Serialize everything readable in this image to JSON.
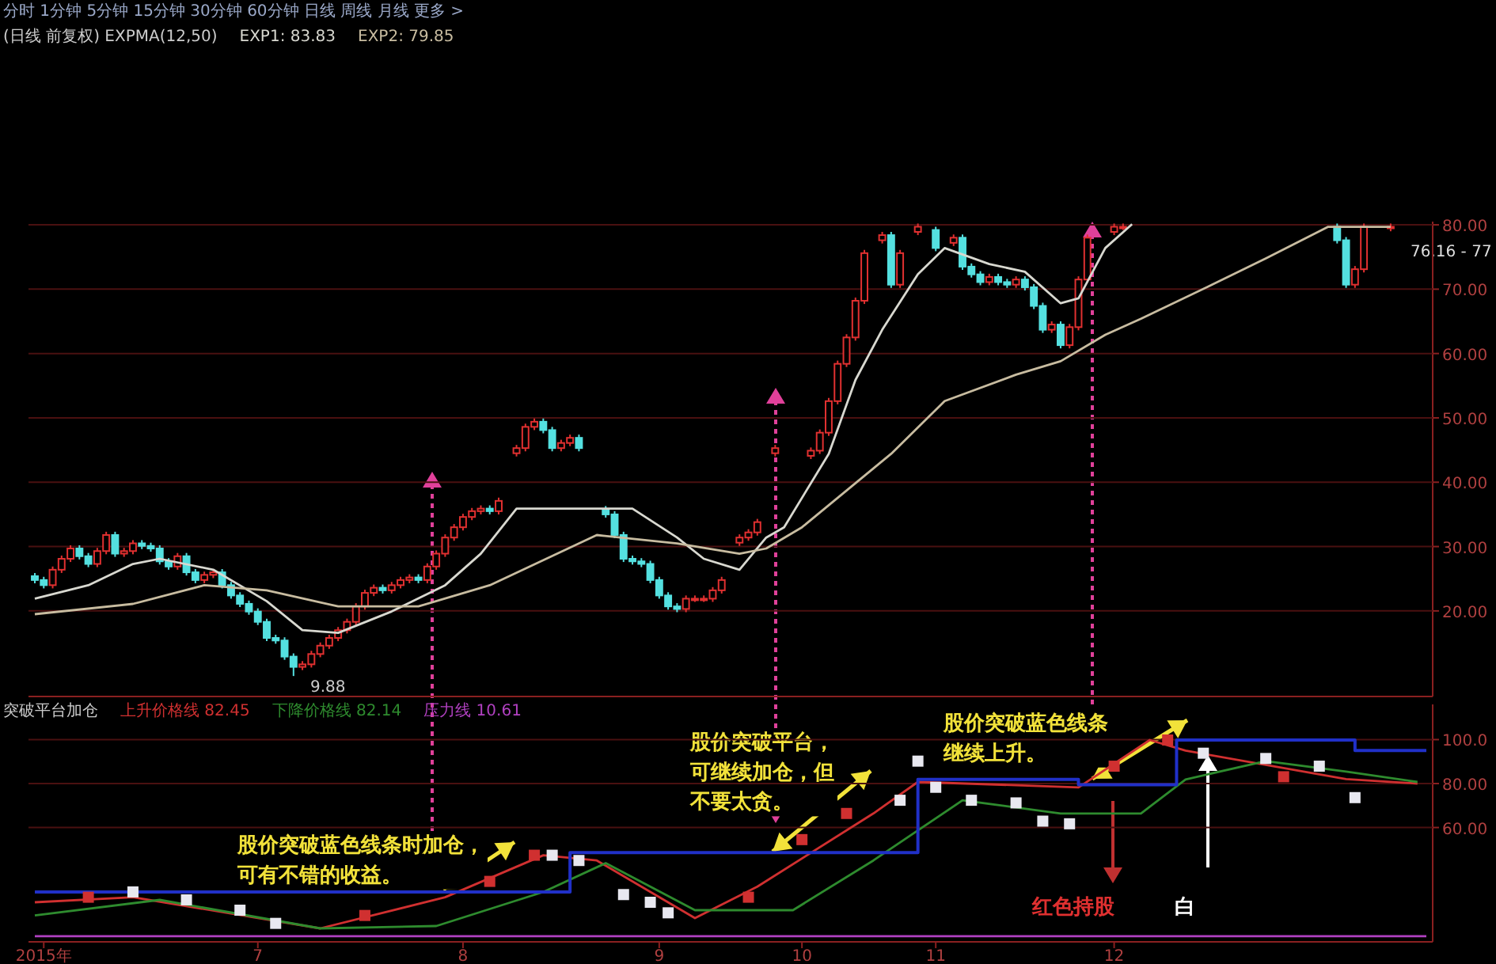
{
  "chart_data": [
    {
      "type": "candlestick",
      "title": "(日线 前复权)  EXPMA(12,50)",
      "tick_labels": "y",
      "grid": "y",
      "legend": "top left",
      "categories": [
        null,
        null,
        null,
        null,
        null,
        null,
        null,
        null,
        null,
        null,
        null,
        null,
        null,
        null,
        null,
        null,
        null,
        null,
        null,
        null,
        null,
        null,
        null,
        null,
        null,
        null,
        null,
        null,
        null,
        null,
        null,
        null,
        null,
        null,
        null,
        null,
        null,
        null,
        null,
        null,
        null,
        null,
        null,
        null,
        null,
        null,
        null,
        null,
        null,
        null,
        null,
        null,
        null,
        null,
        null,
        null,
        null,
        null,
        null,
        null,
        null,
        null,
        null,
        null,
        null,
        null,
        null,
        null,
        null,
        null,
        null,
        null,
        null,
        null,
        null,
        null,
        null,
        null,
        null,
        null,
        null,
        null,
        null,
        null,
        null,
        null,
        null,
        null,
        null,
        null,
        null,
        null,
        null,
        null,
        null,
        null,
        null,
        null,
        null,
        null,
        null,
        null,
        null,
        null,
        null,
        null,
        null,
        null,
        null,
        null,
        null,
        null,
        null,
        null,
        null,
        null,
        null,
        null,
        null,
        null,
        null,
        null,
        null,
        null,
        null,
        null,
        null,
        null,
        null,
        null,
        null,
        null,
        null,
        null,
        null,
        null,
        null,
        null,
        null,
        null,
        null,
        null,
        null,
        null,
        null,
        null,
        null,
        null,
        null,
        null,
        null,
        null,
        null,
        null,
        null,
        null,
        null
      ],
      "ohlc": [
        [
          25.4,
          25.9,
          24.3,
          24.8
        ],
        [
          24.8,
          25.3,
          23.5,
          24.0
        ],
        [
          24.0,
          26.9,
          23.5,
          26.4
        ],
        [
          26.4,
          28.6,
          25.9,
          28.1
        ],
        [
          28.1,
          30.2,
          27.6,
          29.7
        ],
        [
          29.7,
          30.2,
          28.0,
          28.5
        ],
        [
          28.5,
          29.0,
          26.8,
          27.3
        ],
        [
          27.3,
          29.8,
          26.8,
          29.3
        ],
        [
          29.3,
          32.3,
          28.8,
          31.8
        ],
        [
          31.8,
          32.3,
          28.4,
          28.9
        ],
        [
          28.9,
          29.8,
          28.4,
          29.3
        ],
        [
          29.3,
          31.0,
          28.8,
          30.5
        ],
        [
          30.5,
          31.0,
          29.6,
          30.1
        ],
        [
          30.1,
          30.6,
          29.2,
          29.7
        ],
        [
          29.7,
          30.2,
          27.2,
          27.7
        ],
        [
          27.7,
          28.2,
          26.4,
          26.9
        ],
        [
          26.9,
          29.0,
          26.4,
          28.5
        ],
        [
          28.5,
          29.0,
          25.5,
          26.0
        ],
        [
          26.0,
          26.5,
          24.3,
          24.8
        ],
        [
          24.8,
          26.1,
          24.3,
          25.6
        ],
        [
          25.6,
          26.5,
          25.1,
          26.0
        ],
        [
          26.0,
          26.5,
          23.5,
          24.0
        ],
        [
          24.0,
          24.5,
          21.9,
          22.4
        ],
        [
          22.4,
          22.9,
          20.6,
          21.1
        ],
        [
          21.1,
          21.6,
          19.4,
          19.9
        ],
        [
          19.9,
          20.4,
          17.8,
          18.3
        ],
        [
          18.3,
          18.8,
          15.3,
          15.8
        ],
        [
          15.8,
          16.3,
          14.9,
          15.4
        ],
        [
          15.4,
          15.9,
          12.4,
          12.9
        ],
        [
          12.9,
          13.4,
          9.88,
          11.3
        ],
        [
          11.3,
          12.2,
          10.8,
          11.7
        ],
        [
          11.7,
          13.8,
          11.2,
          13.3
        ],
        [
          13.3,
          15.1,
          12.8,
          14.6
        ],
        [
          14.6,
          16.3,
          14.1,
          15.8
        ],
        [
          15.8,
          17.5,
          15.3,
          17.0
        ],
        [
          17.0,
          18.8,
          16.5,
          18.3
        ],
        [
          18.3,
          21.2,
          17.8,
          20.7
        ],
        [
          20.7,
          23.3,
          20.2,
          22.8
        ],
        [
          22.8,
          24.1,
          22.3,
          23.6
        ],
        [
          23.6,
          24.1,
          22.7,
          23.2
        ],
        [
          23.2,
          24.5,
          22.7,
          24.0
        ],
        [
          24.0,
          25.3,
          23.5,
          24.8
        ],
        [
          24.8,
          25.7,
          24.3,
          25.2
        ],
        [
          25.2,
          25.7,
          24.3,
          24.8
        ],
        [
          24.8,
          27.4,
          24.3,
          26.9
        ],
        [
          26.9,
          29.4,
          26.4,
          28.9
        ],
        [
          28.9,
          31.9,
          28.4,
          31.4
        ],
        [
          31.4,
          33.5,
          30.9,
          33.0
        ],
        [
          33.0,
          35.1,
          32.5,
          34.6
        ],
        [
          34.6,
          36.0,
          34.1,
          35.5
        ],
        [
          35.5,
          36.4,
          35.0,
          35.9
        ],
        [
          35.9,
          36.4,
          35.0,
          35.5
        ],
        [
          35.5,
          37.6,
          35.0,
          37.1
        ],
        null,
        [
          44.5,
          45.8,
          44.0,
          45.3
        ],
        [
          45.3,
          49.1,
          44.8,
          48.6
        ],
        [
          48.6,
          49.9,
          48.1,
          49.4
        ],
        [
          49.4,
          49.9,
          47.6,
          48.1
        ],
        [
          48.1,
          48.6,
          44.8,
          45.3
        ],
        [
          45.3,
          46.6,
          44.8,
          46.1
        ],
        [
          46.1,
          47.4,
          45.6,
          46.9
        ],
        [
          46.9,
          47.4,
          44.8,
          45.3
        ],
        null,
        null,
        [
          35.8,
          36.3,
          34.5,
          35.0
        ],
        [
          35.0,
          35.5,
          31.3,
          31.8
        ],
        [
          31.8,
          32.3,
          27.6,
          28.1
        ],
        [
          28.1,
          28.6,
          27.2,
          27.7
        ],
        [
          27.7,
          28.2,
          26.8,
          27.3
        ],
        [
          27.3,
          27.8,
          24.3,
          24.8
        ],
        [
          24.8,
          25.3,
          21.9,
          22.4
        ],
        [
          22.4,
          22.9,
          20.2,
          20.7
        ],
        [
          20.7,
          21.2,
          19.8,
          20.3
        ],
        [
          20.3,
          22.4,
          19.8,
          21.9
        ],
        [
          21.9,
          22.4,
          21.4,
          21.9
        ],
        [
          21.9,
          22.4,
          21.4,
          21.9
        ],
        [
          21.9,
          23.7,
          21.4,
          23.2
        ],
        [
          23.2,
          25.3,
          22.7,
          24.8
        ],
        null,
        [
          30.6,
          31.9,
          30.1,
          31.4
        ],
        [
          31.4,
          32.7,
          30.9,
          32.2
        ],
        [
          32.2,
          34.3,
          31.7,
          33.8
        ],
        null,
        [
          44.5,
          45.8,
          44.0,
          45.3
        ],
        null,
        null,
        null,
        [
          44.1,
          45.4,
          43.6,
          44.9
        ],
        [
          44.9,
          48.2,
          44.4,
          47.7
        ],
        [
          47.7,
          53.1,
          47.2,
          52.6
        ],
        [
          52.6,
          58.9,
          52.1,
          58.4
        ],
        [
          58.4,
          63.0,
          57.9,
          62.5
        ],
        [
          62.5,
          68.7,
          62.0,
          68.2
        ],
        [
          68.2,
          76.1,
          67.7,
          75.6
        ],
        null,
        [
          77.6,
          78.9,
          77.1,
          78.4
        ],
        [
          78.4,
          78.9,
          70.2,
          70.7
        ],
        [
          70.7,
          76.1,
          70.2,
          75.6
        ],
        null,
        [
          78.9,
          80.2,
          78.4,
          79.7
        ],
        null,
        [
          79.2,
          79.7,
          75.9,
          76.4
        ],
        null,
        [
          77.2,
          78.5,
          76.7,
          78.0
        ],
        [
          78.0,
          78.5,
          73.0,
          73.5
        ],
        [
          73.5,
          74.0,
          71.8,
          72.3
        ],
        [
          72.3,
          72.8,
          70.6,
          71.1
        ],
        [
          71.1,
          72.4,
          70.6,
          71.9
        ],
        [
          71.9,
          72.4,
          70.6,
          71.1
        ],
        [
          71.1,
          71.6,
          70.2,
          70.7
        ],
        [
          70.7,
          72.0,
          70.2,
          71.5
        ],
        [
          71.5,
          72.0,
          69.8,
          70.3
        ],
        [
          70.3,
          70.8,
          66.9,
          67.4
        ],
        [
          67.4,
          67.9,
          63.2,
          63.7
        ],
        [
          63.7,
          65.0,
          63.2,
          64.5
        ],
        [
          64.5,
          65.0,
          60.8,
          61.3
        ],
        [
          61.3,
          64.6,
          60.8,
          64.1
        ],
        [
          64.1,
          72.0,
          63.6,
          71.5
        ],
        [
          71.5,
          78.5,
          71.0,
          78.0
        ],
        null,
        null,
        [
          78.9,
          80.2,
          78.4,
          79.7
        ],
        [
          79.7,
          80.2,
          79.2,
          79.7
        ],
        null,
        null,
        null,
        null,
        null,
        null,
        null,
        null,
        null,
        null,
        null,
        null,
        null,
        null,
        null,
        null,
        null,
        null,
        null,
        null,
        null,
        null,
        null,
        [
          79.7,
          80.2,
          77.1,
          77.6
        ],
        [
          77.6,
          78.1,
          70.2,
          70.7
        ],
        [
          70.7,
          73.6,
          70.2,
          73.1
        ],
        [
          73.1,
          80.2,
          72.6,
          79.7
        ],
        null,
        null,
        [
          79.5,
          80.2,
          79.0,
          79.7
        ],
        null,
        null,
        null,
        null
      ],
      "series": [
        {
          "name": "EXP1: 83.83",
          "type": "line",
          "color": "#d8d8d0",
          "values": [
            21.9,
            null,
            null,
            null,
            null,
            null,
            24.0,
            null,
            null,
            null,
            null,
            27.3,
            null,
            null,
            28.1,
            null,
            null,
            null,
            null,
            null,
            26.4,
            null,
            null,
            null,
            null,
            null,
            21.5,
            null,
            null,
            null,
            17.0,
            null,
            null,
            null,
            16.6,
            null,
            null,
            null,
            null,
            null,
            19.9,
            null,
            null,
            null,
            null,
            null,
            24.0,
            null,
            null,
            null,
            28.9,
            null,
            null,
            null,
            35.9,
            null,
            null,
            null,
            null,
            null,
            null,
            null,
            null,
            null,
            null,
            null,
            null,
            35.9,
            null,
            null,
            null,
            null,
            31.4,
            null,
            null,
            28.1,
            null,
            null,
            null,
            26.4,
            null,
            null,
            31.4,
            null,
            33.0,
            null,
            null,
            null,
            null,
            44.4,
            null,
            null,
            55.9,
            null,
            null,
            63.7,
            null,
            null,
            null,
            72.3,
            null,
            null,
            76.4,
            null,
            null,
            null,
            null,
            73.9,
            null,
            null,
            null,
            72.7,
            null,
            null,
            null,
            67.8,
            null,
            68.6,
            null,
            null,
            76.4,
            null,
            null,
            80.1,
            null,
            null,
            null,
            null,
            null,
            null,
            null,
            null,
            null,
            null,
            null,
            null,
            null,
            null,
            null,
            null,
            null,
            null,
            null,
            null,
            null,
            null,
            null,
            null,
            null,
            null,
            null,
            null,
            null,
            null,
            null,
            null,
            null
          ]
        },
        {
          "name": "EXP2: 79.85",
          "type": "line",
          "color": "#c8bca0",
          "values": [
            19.5,
            null,
            null,
            null,
            null,
            null,
            null,
            null,
            null,
            null,
            null,
            21.1,
            null,
            null,
            null,
            null,
            null,
            null,
            null,
            24.0,
            null,
            null,
            null,
            null,
            null,
            null,
            23.2,
            null,
            null,
            null,
            null,
            null,
            null,
            null,
            20.7,
            null,
            null,
            null,
            null,
            null,
            null,
            null,
            null,
            20.7,
            null,
            null,
            null,
            null,
            null,
            null,
            null,
            24.0,
            null,
            null,
            null,
            null,
            null,
            null,
            null,
            null,
            null,
            null,
            null,
            31.8,
            null,
            null,
            null,
            null,
            null,
            null,
            null,
            null,
            30.5,
            null,
            null,
            null,
            null,
            null,
            null,
            28.9,
            null,
            null,
            29.7,
            null,
            null,
            null,
            33.0,
            null,
            null,
            null,
            null,
            null,
            null,
            null,
            null,
            null,
            44.4,
            null,
            null,
            null,
            null,
            null,
            52.6,
            null,
            null,
            null,
            null,
            null,
            null,
            null,
            56.7,
            null,
            null,
            null,
            null,
            58.8,
            null,
            null,
            null,
            null,
            62.9,
            null,
            null,
            null,
            65.4,
            null,
            null,
            null,
            null,
            null,
            null,
            null,
            70.7,
            null,
            null,
            null,
            null,
            null,
            74.8,
            null,
            null,
            null,
            null,
            null,
            null,
            79.7,
            null,
            null,
            null,
            null,
            null,
            null,
            79.7,
            null,
            null,
            null,
            null
          ]
        }
      ],
      "ylim": [
        6.7,
        80.5
      ],
      "yticks": [
        {
          "value": 20,
          "label": "20.00"
        },
        {
          "value": 30,
          "label": "30.00"
        },
        {
          "value": 40,
          "label": "40.00"
        },
        {
          "value": 50,
          "label": "50.00"
        },
        {
          "value": 60,
          "label": "60.00"
        },
        {
          "value": 70,
          "label": "70.00"
        },
        {
          "value": 80,
          "label": "80.00"
        }
      ],
      "annotations": [
        "分时 1分钟 5分钟 15分钟 30分钟 60分钟 日线 周线 月线 更多 >",
        "9.88",
        "76.16 - 77"
      ]
    },
    {
      "type": "line",
      "title": "突破平台加仓",
      "grid": "y",
      "legend": "top left",
      "categories": [
        null,
        "2015年",
        null,
        null,
        null,
        null,
        null,
        null,
        null,
        null,
        null,
        null,
        null,
        null,
        null,
        null,
        null,
        null,
        null,
        null,
        null,
        null,
        null,
        null,
        null,
        "7",
        null,
        null,
        null,
        null,
        null,
        null,
        null,
        null,
        null,
        null,
        null,
        null,
        null,
        null,
        null,
        null,
        null,
        null,
        null,
        null,
        null,
        null,
        "8",
        null,
        null,
        null,
        null,
        null,
        null,
        null,
        null,
        null,
        null,
        null,
        null,
        null,
        null,
        null,
        null,
        null,
        null,
        null,
        null,
        null,
        "9",
        null,
        null,
        null,
        null,
        null,
        null,
        null,
        null,
        null,
        null,
        null,
        null,
        null,
        null,
        null,
        "10",
        null,
        null,
        null,
        null,
        null,
        null,
        null,
        null,
        null,
        null,
        null,
        null,
        null,
        null,
        "11",
        null,
        null,
        null,
        null,
        null,
        null,
        null,
        null,
        null,
        null,
        null,
        null,
        null,
        null,
        null,
        null,
        null,
        null,
        null,
        "12",
        null,
        null,
        null,
        null,
        null,
        null,
        null,
        null,
        null,
        null,
        null,
        null,
        null,
        null,
        null,
        null,
        null,
        null,
        null,
        null,
        null,
        null,
        null,
        null,
        null,
        null,
        null,
        null,
        null,
        null,
        null,
        null,
        null,
        null,
        null
      ],
      "series": [
        {
          "name": "上升价格线 82.45",
          "type": "line",
          "color": "#d03030",
          "values": [
            26.0,
            null,
            null,
            null,
            null,
            null,
            null,
            null,
            null,
            null,
            null,
            28.3,
            null,
            null,
            null,
            null,
            null,
            null,
            null,
            null,
            null,
            null,
            null,
            null,
            null,
            null,
            null,
            null,
            null,
            null,
            null,
            null,
            14.1,
            null,
            null,
            null,
            null,
            null,
            null,
            null,
            null,
            null,
            null,
            null,
            null,
            null,
            28.3,
            null,
            null,
            null,
            null,
            null,
            null,
            null,
            null,
            null,
            null,
            47.4,
            null,
            null,
            null,
            null,
            null,
            45.0,
            null,
            null,
            null,
            null,
            null,
            null,
            null,
            null,
            null,
            null,
            18.8,
            null,
            null,
            null,
            null,
            null,
            null,
            33.1,
            null,
            null,
            null,
            null,
            null,
            null,
            null,
            null,
            null,
            null,
            null,
            null,
            66.4,
            null,
            null,
            null,
            null,
            80.7,
            null,
            null,
            null,
            null,
            null,
            null,
            null,
            null,
            null,
            null,
            null,
            null,
            null,
            null,
            null,
            null,
            null,
            78.3,
            null,
            null,
            null,
            null,
            null,
            null,
            null,
            99.8,
            null,
            null,
            null,
            95.0,
            null,
            null,
            null,
            null,
            null,
            null,
            null,
            null,
            null,
            null,
            null,
            null,
            null,
            null,
            null,
            null,
            null,
            82.0,
            null,
            null,
            null,
            null,
            null,
            null,
            null,
            80.0,
            null
          ]
        },
        {
          "name": "下降价格线 82.14",
          "type": "line",
          "color": "#2e8b2e",
          "values": [
            20.0,
            null,
            null,
            null,
            null,
            null,
            null,
            null,
            null,
            null,
            null,
            null,
            null,
            null,
            27.1,
            null,
            null,
            null,
            null,
            null,
            null,
            null,
            null,
            null,
            null,
            null,
            null,
            null,
            null,
            null,
            null,
            null,
            14.1,
            null,
            null,
            null,
            null,
            null,
            null,
            null,
            null,
            null,
            null,
            null,
            null,
            15.2,
            null,
            null,
            null,
            null,
            null,
            null,
            null,
            null,
            null,
            null,
            null,
            30.7,
            null,
            null,
            null,
            null,
            null,
            null,
            43.8,
            null,
            null,
            null,
            null,
            null,
            null,
            null,
            null,
            null,
            22.4,
            null,
            null,
            null,
            null,
            null,
            null,
            null,
            22.4,
            null,
            null,
            22.4,
            null,
            null,
            null,
            null,
            null,
            null,
            null,
            null,
            45.0,
            null,
            null,
            null,
            null,
            null,
            null,
            null,
            null,
            null,
            72.4,
            null,
            null,
            null,
            null,
            null,
            null,
            null,
            null,
            null,
            null,
            66.4,
            null,
            null,
            null,
            null,
            null,
            null,
            null,
            null,
            66.4,
            null,
            null,
            null,
            null,
            81.9,
            null,
            null,
            null,
            null,
            null,
            null,
            null,
            null,
            90.2,
            null,
            null,
            null,
            null,
            null,
            null,
            null,
            null,
            85.5,
            null,
            null,
            null,
            null,
            null,
            null,
            null,
            80.7,
            null
          ]
        },
        {
          "name": "压力线 10.61",
          "type": "line",
          "color": "#b040c0",
          "values": [
            10.6,
            null,
            null,
            null,
            null,
            null,
            null,
            null,
            null,
            null,
            null,
            null,
            null,
            null,
            null,
            null,
            null,
            null,
            null,
            null,
            null,
            null,
            null,
            null,
            null,
            null,
            null,
            null,
            null,
            null,
            null,
            null,
            null,
            null,
            null,
            null,
            null,
            null,
            null,
            null,
            null,
            null,
            null,
            null,
            null,
            null,
            null,
            null,
            null,
            null,
            null,
            null,
            null,
            null,
            null,
            null,
            null,
            null,
            null,
            null,
            null,
            null,
            null,
            null,
            null,
            null,
            null,
            null,
            null,
            null,
            null,
            null,
            null,
            null,
            null,
            null,
            null,
            null,
            null,
            null,
            null,
            null,
            null,
            null,
            null,
            null,
            null,
            null,
            null,
            null,
            null,
            null,
            null,
            null,
            null,
            null,
            null,
            null,
            null,
            null,
            null,
            null,
            null,
            null,
            null,
            null,
            null,
            null,
            null,
            null,
            null,
            null,
            null,
            null,
            null,
            null,
            null,
            null,
            null,
            null,
            null,
            null,
            null,
            null,
            null,
            null,
            null,
            null,
            null,
            null,
            null,
            null,
            null,
            null,
            null,
            null,
            null,
            null,
            null,
            null,
            null,
            null,
            null,
            null,
            null,
            null,
            null,
            null,
            null,
            null,
            null,
            null,
            null,
            null,
            null,
            null,
            10.6
          ]
        },
        {
          "type": "step",
          "color": "#2030c8",
          "values": [
            30.7,
            null,
            null,
            null,
            null,
            null,
            null,
            null,
            null,
            null,
            null,
            null,
            null,
            null,
            null,
            null,
            null,
            null,
            null,
            null,
            null,
            null,
            null,
            null,
            null,
            null,
            null,
            null,
            null,
            null,
            null,
            null,
            null,
            null,
            null,
            null,
            null,
            null,
            null,
            null,
            null,
            null,
            null,
            null,
            null,
            null,
            null,
            null,
            null,
            null,
            null,
            null,
            null,
            null,
            null,
            null,
            null,
            null,
            null,
            null,
            48.6,
            null,
            null,
            null,
            null,
            null,
            null,
            null,
            null,
            null,
            null,
            null,
            null,
            null,
            null,
            null,
            null,
            null,
            null,
            null,
            null,
            null,
            null,
            null,
            null,
            null,
            null,
            null,
            null,
            null,
            null,
            null,
            null,
            null,
            null,
            null,
            null,
            null,
            null,
            81.9,
            null,
            null,
            null,
            null,
            null,
            null,
            null,
            null,
            null,
            null,
            null,
            null,
            null,
            null,
            null,
            null,
            null,
            79.5,
            null,
            null,
            null,
            null,
            null,
            null,
            null,
            null,
            null,
            null,
            99.8,
            null,
            null,
            null,
            null,
            null,
            null,
            null,
            null,
            null,
            null,
            null,
            null,
            null,
            null,
            null,
            null,
            null,
            null,
            null,
            95.0,
            null,
            null,
            null,
            null,
            null,
            null,
            null,
            95.0
          ]
        },
        {
          "type": "scatter",
          "marker": "square",
          "color": "#e8e8f0",
          "values": [
            null,
            null,
            null,
            null,
            null,
            null,
            null,
            null,
            null,
            null,
            null,
            30.7,
            null,
            null,
            null,
            null,
            null,
            27.1,
            null,
            null,
            null,
            null,
            null,
            22.4,
            null,
            null,
            null,
            16.4,
            null,
            null,
            null,
            null,
            null,
            null,
            null,
            null,
            null,
            null,
            null,
            null,
            null,
            null,
            null,
            null,
            null,
            null,
            null,
            null,
            null,
            null,
            null,
            null,
            null,
            null,
            null,
            null,
            null,
            null,
            47.4,
            null,
            null,
            45.0,
            null,
            null,
            null,
            null,
            29.5,
            null,
            null,
            26.0,
            null,
            21.2,
            null,
            null,
            null,
            null,
            null,
            null,
            null,
            null,
            null,
            null,
            null,
            null,
            null,
            null,
            null,
            null,
            null,
            null,
            null,
            null,
            null,
            null,
            null,
            null,
            null,
            72.4,
            null,
            90.2,
            null,
            78.3,
            null,
            null,
            null,
            72.4,
            null,
            null,
            null,
            null,
            71.2,
            null,
            null,
            62.9,
            null,
            null,
            61.7,
            null,
            null,
            null,
            null,
            null,
            null,
            null,
            null,
            null,
            null,
            null,
            null,
            null,
            null,
            93.8,
            null,
            null,
            null,
            null,
            null,
            null,
            91.4,
            null,
            null,
            null,
            null,
            null,
            87.9,
            null,
            null,
            null,
            73.6,
            null,
            null,
            null,
            null,
            null,
            null,
            null,
            null
          ]
        },
        {
          "type": "scatter",
          "marker": "square",
          "color": "#d03030",
          "values": [
            null,
            null,
            null,
            null,
            null,
            null,
            28.3,
            null,
            null,
            null,
            null,
            null,
            null,
            null,
            null,
            null,
            null,
            null,
            null,
            null,
            null,
            null,
            null,
            null,
            null,
            null,
            null,
            null,
            null,
            null,
            null,
            null,
            null,
            null,
            null,
            null,
            null,
            20.0,
            null,
            null,
            null,
            null,
            null,
            null,
            null,
            null,
            null,
            null,
            null,
            null,
            null,
            35.5,
            null,
            null,
            null,
            null,
            47.4,
            null,
            null,
            null,
            null,
            null,
            null,
            null,
            null,
            null,
            null,
            null,
            null,
            null,
            null,
            null,
            null,
            null,
            null,
            null,
            null,
            null,
            null,
            null,
            28.3,
            null,
            null,
            null,
            null,
            null,
            54.5,
            null,
            null,
            null,
            null,
            66.4,
            null,
            null,
            null,
            null,
            null,
            null,
            null,
            null,
            null,
            null,
            null,
            null,
            null,
            null,
            null,
            null,
            null,
            null,
            null,
            null,
            null,
            null,
            null,
            null,
            null,
            null,
            null,
            null,
            null,
            87.9,
            null,
            null,
            null,
            null,
            null,
            99.8,
            null,
            null,
            null,
            null,
            null,
            null,
            null,
            null,
            null,
            null,
            null,
            null,
            83.1,
            null,
            null,
            null,
            null,
            null,
            null,
            null,
            null,
            null,
            null,
            null,
            null,
            null,
            null,
            null,
            null
          ]
        }
      ],
      "ylim": [
        8,
        116
      ],
      "yticks": [
        {
          "value": 60,
          "label": "60.00"
        },
        {
          "value": 80,
          "label": "80.00"
        },
        {
          "value": 100,
          "label": "100.0"
        }
      ],
      "annotations": [
        "股价突破蓝色线条时加仓，可有不错的收益。",
        "股价突破平台，可继续加仓，但不要太贪。",
        "股价突破蓝色线条继续上升。",
        "红色持股",
        "白"
      ]
    }
  ]
}
